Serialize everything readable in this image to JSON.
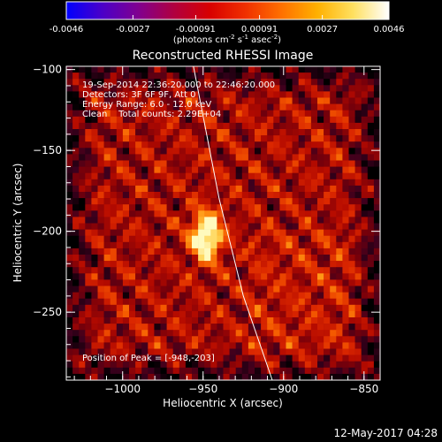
{
  "colorbar": {
    "ticks": [
      "-0.0046",
      "-0.0027",
      "-0.00091",
      "0.00091",
      "0.0027",
      "0.0046"
    ],
    "tick_values": [
      -0.0046,
      -0.0027,
      -0.00091,
      0.00091,
      0.0027,
      0.0046
    ],
    "range": [
      -0.0046,
      0.0046
    ],
    "units_prefix": "(photons cm",
    "units_exp1": "-2",
    "units_mid1": " s",
    "units_exp2": "-1",
    "units_mid2": " asec",
    "units_exp3": "-2",
    "units_suffix": ")",
    "colormap": [
      "#0000ff",
      "#4b00c8",
      "#800090",
      "#b00040",
      "#d80000",
      "#f03000",
      "#ff7000",
      "#ffb000",
      "#ffe060",
      "#ffffff"
    ]
  },
  "chart_data": {
    "type": "heatmap",
    "title": "Reconstructed RHESSI Image",
    "xlabel": "Heliocentric X (arcsec)",
    "ylabel": "Heliocentric Y (arcsec)",
    "xlim": [
      -1035,
      -840
    ],
    "ylim": [
      -292,
      -98
    ],
    "x_ticks": [
      {
        "value": -1000,
        "label": "−1000"
      },
      {
        "value": -950,
        "label": "−950"
      },
      {
        "value": -900,
        "label": "−900"
      },
      {
        "value": -850,
        "label": "−850"
      }
    ],
    "y_ticks": [
      {
        "value": -100,
        "label": "−100"
      },
      {
        "value": -150,
        "label": "−150"
      },
      {
        "value": -200,
        "label": "−200"
      },
      {
        "value": -250,
        "label": "−250"
      }
    ],
    "peak": [
      -948,
      -203
    ],
    "limb_points": [
      [
        -956,
        -98
      ],
      [
        -940,
        -180
      ],
      [
        -925,
        -240
      ],
      [
        -907,
        -292
      ]
    ],
    "annotations": [
      "19-Sep-2014 22:36:20.000 to 22:46:20.000",
      "Detectors: 3F 6F 9F, Att 0",
      "Energy Range: 6.0 - 12.0 keV",
      "Clean    Total counts: 2.29E+04"
    ],
    "peak_label": "Position of Peak = [-948,-203]"
  },
  "footer": {
    "timestamp": "12-May-2017 04:28"
  }
}
